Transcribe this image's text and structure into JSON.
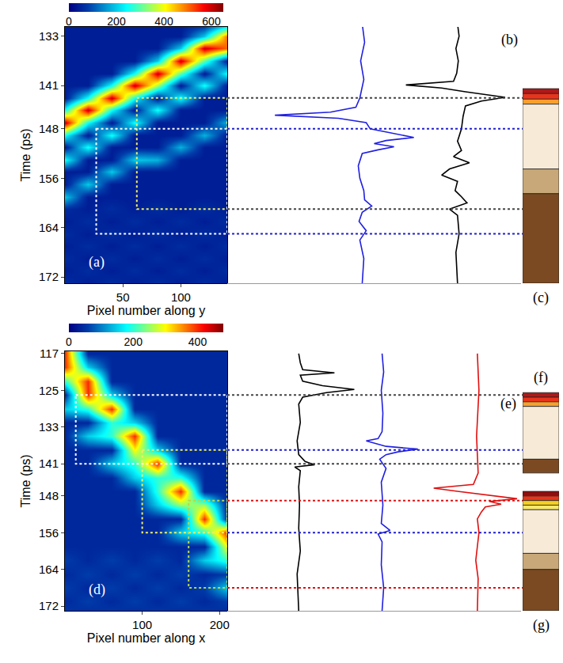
{
  "chart_data": [
    {
      "type": "composite",
      "y_label": "Time (ps)",
      "ylim": [
        173,
        131.5
      ],
      "yticks": [
        133,
        141,
        148,
        156,
        164,
        172
      ],
      "heatmap": {
        "type": "heatmap",
        "label": "(a)",
        "x_label": "Pixel number along y",
        "xlim": [
          0,
          140
        ],
        "xticks": [
          50,
          100
        ],
        "x": [
          0,
          20,
          40,
          60,
          80,
          100,
          120,
          140
        ],
        "y": [
          131,
          133,
          135,
          137,
          139,
          141,
          143,
          145,
          147,
          149,
          151,
          153,
          155,
          157,
          159,
          161,
          163,
          165,
          167,
          169,
          171,
          173
        ],
        "z": [
          [
            40,
            40,
            40,
            40,
            40,
            40,
            40,
            150
          ],
          [
            40,
            40,
            40,
            40,
            40,
            40,
            200,
            500
          ],
          [
            40,
            40,
            40,
            40,
            40,
            200,
            600,
            500
          ],
          [
            40,
            40,
            40,
            40,
            200,
            600,
            300,
            40
          ],
          [
            40,
            40,
            40,
            250,
            600,
            300,
            40,
            250
          ],
          [
            40,
            40,
            250,
            600,
            350,
            40,
            250,
            40
          ],
          [
            40,
            250,
            600,
            250,
            40,
            250,
            40,
            40
          ],
          [
            250,
            600,
            250,
            40,
            250,
            40,
            40,
            40
          ],
          [
            600,
            250,
            40,
            250,
            40,
            40,
            40,
            180
          ],
          [
            250,
            40,
            250,
            40,
            40,
            40,
            180,
            40
          ],
          [
            40,
            250,
            40,
            40,
            40,
            180,
            40,
            40
          ],
          [
            250,
            40,
            40,
            200,
            180,
            40,
            40,
            40
          ],
          [
            40,
            40,
            200,
            40,
            40,
            40,
            40,
            40
          ],
          [
            40,
            200,
            40,
            40,
            40,
            40,
            40,
            40
          ],
          [
            200,
            40,
            40,
            40,
            40,
            40,
            40,
            40
          ],
          [
            60,
            40,
            60,
            40,
            60,
            40,
            60,
            40
          ],
          [
            40,
            60,
            40,
            60,
            40,
            60,
            40,
            60
          ],
          [
            60,
            40,
            60,
            40,
            60,
            40,
            60,
            40
          ],
          [
            40,
            60,
            40,
            60,
            40,
            60,
            40,
            60
          ],
          [
            60,
            40,
            60,
            40,
            60,
            40,
            60,
            40
          ],
          [
            40,
            60,
            40,
            60,
            40,
            60,
            40,
            60
          ],
          [
            60,
            40,
            60,
            40,
            60,
            40,
            60,
            40
          ]
        ],
        "colorbar": {
          "range": [
            0,
            650
          ],
          "ticks": [
            0,
            200,
            400,
            600
          ]
        },
        "boxes": [
          {
            "x0": 62,
            "x1": 140,
            "t0": 143,
            "t1": 161,
            "color": "#f0f060"
          },
          {
            "x0": 27,
            "x1": 140,
            "t0": 148,
            "t1": 165,
            "color": "#ffffff"
          }
        ]
      },
      "lines": {
        "type": "line",
        "label": "(b)",
        "xlim": [
          -1.7,
          2.0
        ],
        "tick_labels": false,
        "series": [
          {
            "color": "#2020e0",
            "t": [
              131,
              134,
              137,
              140,
              143,
              144.5,
              145.3,
              145.8,
              146.3,
              147,
              148,
              148.8,
              149.4,
              149.9,
              150.4,
              150.9,
              151.4,
              152,
              154,
              156,
              158,
              159.5,
              160.5,
              161.5,
              163,
              164.5,
              166,
              169,
              173
            ],
            "values": [
              0,
              0.03,
              -0.02,
              0.02,
              -0.03,
              -0.08,
              -0.4,
              -1.1,
              -0.3,
              0.05,
              0.1,
              0.4,
              0.65,
              0.3,
              0.15,
              0.4,
              0.2,
              0,
              -0.05,
              -0.03,
              0.02,
              0.03,
              0.12,
              0,
              -0.04,
              0.05,
              -0.03,
              0.02,
              0
            ]
          },
          {
            "color": "#000000",
            "t": [
              131,
              133,
              135,
              137,
              139,
              140.3,
              140.9,
              141.4,
              142,
              142.9,
              143.5,
              144.3,
              146,
              148,
              150,
              151.5,
              152.5,
              153.5,
              154.5,
              155.5,
              156.5,
              158,
              159,
              160,
              161,
              162,
              165,
              168,
              173
            ],
            "values": [
              1.2,
              1.22,
              1.18,
              1.21,
              1.19,
              1.15,
              0.55,
              1.0,
              1.3,
              1.8,
              1.5,
              1.3,
              1.27,
              1.25,
              1.2,
              1.25,
              1.15,
              1.35,
              1.1,
              1.0,
              1.2,
              1.17,
              1.25,
              1.32,
              1.1,
              1.2,
              1.22,
              1.18,
              1.2
            ]
          }
        ],
        "levels": [
          {
            "t": 143,
            "color": "#444444"
          },
          {
            "t": 148,
            "color": "#2020d0"
          },
          {
            "t": 161,
            "color": "#444444"
          },
          {
            "t": 165,
            "color": "#2020d0"
          }
        ]
      },
      "layers": {
        "type": "layers",
        "labels": [
          "(c)"
        ],
        "bands": [
          {
            "t0": 141.5,
            "t1": 142.3,
            "color": "#b01818"
          },
          {
            "t0": 142.3,
            "t1": 143.2,
            "color": "#e8341c"
          },
          {
            "t0": 143.2,
            "t1": 144,
            "color": "#f7a030"
          },
          {
            "t0": 144,
            "t1": 154.5,
            "color": "#f7ead6"
          },
          {
            "t0": 154.5,
            "t1": 158.5,
            "color": "#c8a878"
          },
          {
            "t0": 158.5,
            "t1": 173,
            "color": "#7b4a22"
          }
        ]
      }
    },
    {
      "type": "composite",
      "y_label": "Time (ps)",
      "ylim": [
        173,
        116.5
      ],
      "yticks": [
        117,
        125,
        133,
        141,
        148,
        156,
        164,
        172
      ],
      "heatmap": {
        "type": "heatmap",
        "label": "(d)",
        "x_label": "Pixel number along x",
        "xlim": [
          0,
          210
        ],
        "xticks": [
          100,
          200
        ],
        "x": [
          0,
          30,
          60,
          90,
          120,
          150,
          180,
          210
        ],
        "y": [
          117,
          120,
          123,
          126,
          129,
          132,
          135,
          138,
          141,
          144,
          147,
          150,
          153,
          156,
          159,
          162,
          165,
          168,
          171,
          174
        ],
        "z": [
          [
            400,
            40,
            40,
            40,
            40,
            40,
            40,
            40
          ],
          [
            400,
            150,
            40,
            40,
            40,
            40,
            40,
            40
          ],
          [
            200,
            400,
            40,
            40,
            40,
            40,
            40,
            40
          ],
          [
            40,
            400,
            150,
            40,
            40,
            40,
            40,
            40
          ],
          [
            150,
            200,
            400,
            40,
            40,
            40,
            40,
            40
          ],
          [
            40,
            40,
            200,
            150,
            40,
            40,
            40,
            40
          ],
          [
            40,
            150,
            200,
            400,
            40,
            40,
            40,
            40
          ],
          [
            40,
            40,
            40,
            300,
            150,
            40,
            40,
            40
          ],
          [
            40,
            40,
            150,
            200,
            400,
            40,
            40,
            40
          ],
          [
            40,
            40,
            40,
            150,
            200,
            200,
            40,
            40
          ],
          [
            40,
            40,
            40,
            40,
            200,
            400,
            40,
            40
          ],
          [
            40,
            40,
            40,
            40,
            150,
            250,
            250,
            40
          ],
          [
            40,
            40,
            40,
            40,
            40,
            40,
            400,
            40
          ],
          [
            40,
            40,
            40,
            40,
            40,
            150,
            200,
            400
          ],
          [
            40,
            40,
            40,
            40,
            40,
            40,
            40,
            300
          ],
          [
            60,
            40,
            60,
            40,
            60,
            40,
            150,
            200
          ],
          [
            40,
            60,
            40,
            60,
            40,
            60,
            40,
            60
          ],
          [
            60,
            40,
            60,
            40,
            60,
            40,
            60,
            150
          ],
          [
            40,
            60,
            40,
            60,
            40,
            60,
            40,
            60
          ],
          [
            60,
            40,
            60,
            40,
            60,
            40,
            60,
            40
          ]
        ],
        "colorbar": {
          "range": [
            0,
            480
          ],
          "ticks": [
            0,
            200,
            400
          ]
        },
        "boxes": [
          {
            "x0": 14,
            "x1": 210,
            "t0": 126,
            "t1": 141,
            "color": "#ffffff"
          },
          {
            "x0": 100,
            "x1": 210,
            "t0": 138,
            "t1": 156,
            "color": "#f0f060"
          },
          {
            "x0": 160,
            "x1": 210,
            "t0": 149,
            "t1": 168,
            "color": "#b8d848"
          }
        ]
      },
      "lines": {
        "type": "line",
        "label": "(e)",
        "xlim": [
          -1.7,
          2.0
        ],
        "tick_labels": false,
        "series": [
          {
            "color": "#000000",
            "t": [
              117,
              119,
              120.5,
              121.2,
              121.7,
              123,
              124,
              124.8,
              125.5,
              126.5,
              128,
              132,
              136,
              139,
              140.5,
              141.2,
              141.7,
              142.5,
              146,
              150,
              155,
              160,
              165,
              173
            ],
            "values": [
              -0.8,
              -0.78,
              -0.75,
              -0.35,
              -0.78,
              -0.75,
              -0.5,
              -0.1,
              -0.45,
              -0.75,
              -0.8,
              -0.78,
              -0.82,
              -0.8,
              -0.72,
              -0.6,
              -0.85,
              -0.78,
              -0.8,
              -0.79,
              -0.8,
              -0.78,
              -0.82,
              -0.8
            ]
          },
          {
            "color": "#2020e0",
            "t": [
              117,
              121,
              125,
              130,
              134,
              135.5,
              136,
              137.2,
              137.8,
              138.4,
              139,
              140,
              142,
              145,
              150,
              154,
              155.5,
              156.3,
              158,
              163,
              168,
              173
            ],
            "values": [
              0.25,
              0.27,
              0.24,
              0.26,
              0.25,
              0.2,
              0.05,
              0.3,
              0.7,
              0.45,
              0.3,
              0.22,
              0.3,
              0.24,
              0.26,
              0.24,
              0.35,
              0.2,
              0.25,
              0.24,
              0.27,
              0.25
            ]
          },
          {
            "color": "#e01010",
            "t": [
              117,
              125,
              135,
              143,
              145.5,
              146.3,
              147,
              147.8,
              148.6,
              149.2,
              149.8,
              150.4,
              151.5,
              153,
              156,
              159,
              162,
              166,
              173
            ],
            "values": [
              1.45,
              1.47,
              1.44,
              1.46,
              1.4,
              0.9,
              1.2,
              1.6,
              1.95,
              1.6,
              1.75,
              1.55,
              1.5,
              1.45,
              1.47,
              1.45,
              1.43,
              1.46,
              1.45
            ]
          }
        ],
        "levels": [
          {
            "t": 126,
            "color": "#444444"
          },
          {
            "t": 141,
            "color": "#444444"
          },
          {
            "t": 138,
            "color": "#2020d0"
          },
          {
            "t": 156,
            "color": "#2020d0"
          },
          {
            "t": 149,
            "color": "#e01010"
          },
          {
            "t": 168,
            "color": "#e01010"
          }
        ]
      },
      "layers": {
        "type": "layers",
        "labels": [
          "(f)",
          "(g)"
        ],
        "bands": [
          {
            "t0": 125.5,
            "t1": 126.5,
            "color": "#b01818"
          },
          {
            "t0": 126.5,
            "t1": 127.5,
            "color": "#e8341c"
          },
          {
            "t0": 127.5,
            "t1": 128.5,
            "color": "#f7a030"
          },
          {
            "t0": 128.5,
            "t1": 140,
            "color": "#f7ead6"
          },
          {
            "t0": 140,
            "t1": 143,
            "color": "#7b4a22"
          },
          {
            "t0": 147,
            "t1": 148,
            "color": "#8a1010"
          },
          {
            "t0": 148,
            "t1": 149,
            "color": "#e8341c"
          },
          {
            "t0": 149,
            "t1": 150,
            "color": "#f5d020"
          },
          {
            "t0": 150,
            "t1": 151,
            "color": "#f8e870"
          },
          {
            "t0": 151,
            "t1": 160.5,
            "color": "#f7ead6"
          },
          {
            "t0": 160.5,
            "t1": 164,
            "color": "#c8a878"
          },
          {
            "t0": 164,
            "t1": 173,
            "color": "#7b4a22"
          }
        ]
      }
    }
  ]
}
